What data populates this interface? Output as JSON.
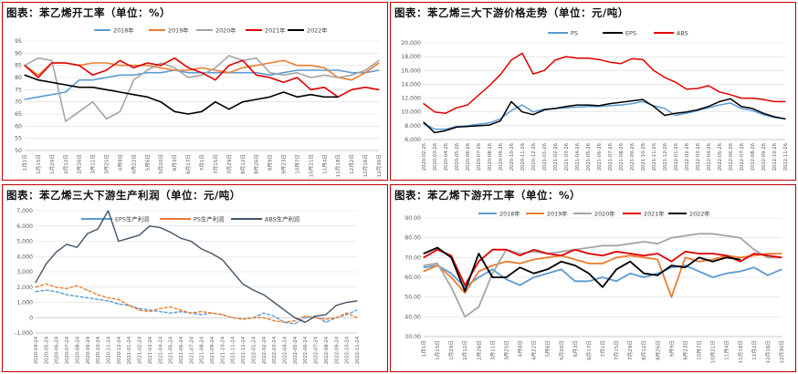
{
  "panels": [
    {
      "title": "图表：苯乙烯开工率（单位：%）"
    },
    {
      "title": "图表：苯乙烯三大下游价格走势（单位：元/吨）"
    },
    {
      "title": "图表：苯乙烯三大下游生产利润（单位：元/吨）"
    },
    {
      "title": "图表：苯乙烯下游开工率（单位：%）"
    }
  ],
  "chart_data": [
    {
      "type": "line",
      "title": "图表：苯乙烯开工率（单位：%）",
      "xlabel": "",
      "ylabel": "",
      "ylim": [
        50,
        95
      ],
      "yticks": [
        50,
        55,
        60,
        65,
        70,
        75,
        80,
        85,
        90,
        95
      ],
      "x": [
        "1月1日",
        "1月15日",
        "1月29日",
        "2月12日",
        "2月26日",
        "3月11日",
        "3月25日",
        "4月8日",
        "4月22日",
        "5月6日",
        "5月20日",
        "6月3日",
        "6月17日",
        "7月1日",
        "7月15日",
        "7月29日",
        "8月12日",
        "8月26日",
        "9月9日",
        "9月23日",
        "10月7日",
        "10月21日",
        "11月4日",
        "11月18日",
        "12月2日",
        "12月16日",
        "12月30日"
      ],
      "legend": "top",
      "grid": true,
      "series": [
        {
          "name": "2018年",
          "color": "#5b9bd5",
          "values": [
            71,
            72,
            73,
            74,
            79,
            79,
            80,
            81,
            81,
            82,
            82,
            83,
            82,
            82,
            82,
            82,
            82,
            82,
            81,
            82,
            83,
            83,
            83,
            83,
            82,
            82,
            83
          ]
        },
        {
          "name": "2019年",
          "color": "#ed7d31",
          "values": [
            85,
            81,
            86,
            86,
            85,
            86,
            86,
            85,
            85,
            85,
            84,
            83,
            83,
            84,
            83,
            82,
            84,
            85,
            86,
            87,
            85,
            85,
            84,
            80,
            79,
            82,
            86
          ]
        },
        {
          "name": "2020年",
          "color": "#a5a5a5",
          "values": [
            85,
            88,
            87,
            62,
            66,
            70,
            63,
            66,
            79,
            83,
            86,
            84,
            80,
            81,
            84,
            89,
            87,
            88,
            82,
            81,
            82,
            80,
            81,
            80,
            81,
            83,
            87
          ]
        },
        {
          "name": "2021年",
          "color": "#e00000",
          "values": [
            85,
            80,
            86,
            86,
            85,
            81,
            83,
            87,
            84,
            86,
            85,
            88,
            84,
            82,
            79,
            85,
            87,
            81,
            80,
            78,
            80,
            75,
            76,
            72,
            75,
            76,
            75
          ]
        },
        {
          "name": "2022年",
          "color": "#000000",
          "values": [
            81,
            79,
            78,
            77,
            76,
            76,
            75,
            74,
            73,
            72,
            70,
            66,
            65,
            66,
            70,
            67,
            70,
            71,
            72,
            74,
            72,
            73,
            72,
            72,
            null,
            null,
            null
          ]
        }
      ]
    },
    {
      "type": "line",
      "title": "图表：苯乙烯三大下游价格走势（单位：元/吨）",
      "xlabel": "",
      "ylabel": "",
      "ylim": [
        6000,
        20000
      ],
      "yticks": [
        6000,
        8000,
        10000,
        12000,
        14000,
        16000,
        18000,
        20000
      ],
      "x": [
        "2020-02-26",
        "2020-03-26",
        "2020-04-26",
        "2020-05-26",
        "2020-06-26",
        "2020-07-26",
        "2020-08-26",
        "2020-09-26",
        "2020-10-26",
        "2020-11-26",
        "2020-12-26",
        "2021-01-26",
        "2021-02-26",
        "2021-03-26",
        "2021-04-26",
        "2021-05-26",
        "2021-06-26",
        "2021-07-26",
        "2021-08-26",
        "2021-09-26",
        "2021-10-26",
        "2021-11-26",
        "2021-12-26",
        "2022-01-26",
        "2022-02-26",
        "2022-03-26",
        "2022-04-26",
        "2022-05-26",
        "2022-06-26",
        "2022-07-26",
        "2022-08-26",
        "2022-09-26",
        "2022-10-26",
        "2022-11-26"
      ],
      "legend": "top",
      "grid": true,
      "series": [
        {
          "name": "PS",
          "color": "#5b9bd5",
          "values": [
            8300,
            7500,
            7500,
            7900,
            8000,
            8200,
            8400,
            9000,
            10200,
            11000,
            10000,
            10400,
            10500,
            10600,
            10700,
            10800,
            10800,
            10900,
            11000,
            11200,
            11500,
            10900,
            10500,
            9500,
            9800,
            10200,
            10600,
            11000,
            11300,
            10500,
            10200,
            9600,
            9200,
            9000
          ]
        },
        {
          "name": "EPS",
          "color": "#000000",
          "values": [
            8500,
            7000,
            7300,
            7800,
            7900,
            8000,
            8100,
            8700,
            11500,
            10000,
            9600,
            10300,
            10500,
            10800,
            11000,
            11000,
            10900,
            11200,
            11400,
            11600,
            11800,
            10800,
            9500,
            9800,
            10000,
            10300,
            10800,
            11500,
            11900,
            10800,
            10500,
            9800,
            9300,
            9000
          ]
        },
        {
          "name": "ABS",
          "color": "#e00000",
          "values": [
            11200,
            10000,
            9800,
            10600,
            11000,
            12400,
            13800,
            15400,
            17500,
            18500,
            15500,
            16000,
            17500,
            18000,
            17800,
            17800,
            17600,
            17200,
            17000,
            17700,
            17600,
            16000,
            15000,
            14300,
            13300,
            13400,
            13800,
            12900,
            12500,
            12000,
            12000,
            11800,
            11500,
            11500
          ]
        }
      ]
    },
    {
      "type": "line",
      "title": "图表：苯乙烯三大下游生产利润（单位：元/吨）",
      "xlabel": "",
      "ylabel": "",
      "ylim": [
        -1000,
        7000
      ],
      "yticks": [
        -1000,
        0,
        1000,
        2000,
        3000,
        4000,
        5000,
        6000,
        7000
      ],
      "x": [
        "2020-04-24",
        "2020-05-24",
        "2020-06-24",
        "2020-07-24",
        "2020-08-24",
        "2020-09-24",
        "2020-10-24",
        "2020-11-24",
        "2020-12-24",
        "2021-01-24",
        "2021-02-24",
        "2021-03-24",
        "2021-04-24",
        "2021-05-24",
        "2021-06-24",
        "2021-07-24",
        "2021-08-24",
        "2021-09-24",
        "2021-10-24",
        "2021-11-24",
        "2021-12-24",
        "2022-01-24",
        "2022-02-24",
        "2022-03-24",
        "2022-04-24",
        "2022-05-24",
        "2022-06-24",
        "2022-07-24",
        "2022-08-24",
        "2022-09-24",
        "2022-10-24",
        "2022-11-24"
      ],
      "legend": "top",
      "grid": true,
      "series": [
        {
          "name": "EPS生产利润",
          "color": "#5b9bd5",
          "values": [
            1700,
            1800,
            1700,
            1500,
            1400,
            1300,
            1200,
            1100,
            900,
            800,
            600,
            500,
            400,
            300,
            400,
            300,
            200,
            300,
            200,
            0,
            -100,
            0,
            300,
            100,
            -300,
            -400,
            0,
            100,
            -300,
            0,
            200,
            500
          ]
        },
        {
          "name": "PS生产利润",
          "color": "#ed7d31",
          "values": [
            2000,
            2200,
            2000,
            1900,
            2100,
            1800,
            1500,
            1300,
            1200,
            800,
            500,
            400,
            600,
            700,
            500,
            300,
            400,
            300,
            200,
            0,
            -100,
            0,
            0,
            -200,
            -300,
            -200,
            100,
            0,
            -100,
            0,
            300,
            0
          ]
        },
        {
          "name": "ABS生产利润",
          "color": "#44546a",
          "values": [
            2300,
            3500,
            4300,
            4800,
            4600,
            5500,
            5800,
            7000,
            5000,
            5200,
            5400,
            6000,
            5900,
            5600,
            5200,
            5000,
            4500,
            4200,
            3800,
            3000,
            2200,
            1800,
            1500,
            1000,
            500,
            0,
            -300,
            100,
            200,
            800,
            1000,
            1100
          ]
        }
      ]
    },
    {
      "type": "line",
      "title": "图表：苯乙烯下游开工率（单位：%）",
      "xlabel": "",
      "ylabel": "",
      "ylim": [
        30,
        90
      ],
      "yticks": [
        30,
        40,
        50,
        60,
        70,
        80,
        90
      ],
      "ytick_labels": [
        "30.00",
        "40.00",
        "50.00",
        "60.00",
        "70.00",
        "80.00",
        "90.00"
      ],
      "x": [
        "1月1日",
        "1月15日",
        "1月29日",
        "2月12日",
        "2月26日",
        "3月11日",
        "3月25日",
        "4月8日",
        "4月22日",
        "5月6日",
        "5月20日",
        "6月3日",
        "6月17日",
        "7月1日",
        "7月15日",
        "7月29日",
        "8月12日",
        "8月26日",
        "9月9日",
        "9月23日",
        "10月7日",
        "10月21日",
        "11月4日",
        "11月18日",
        "12月2日",
        "12月16日",
        "12月30日"
      ],
      "legend": "top",
      "grid": true,
      "series": [
        {
          "name": "2018年",
          "color": "#5b9bd5",
          "values": [
            65,
            66,
            62,
            55,
            60,
            64,
            59,
            56,
            60,
            62,
            64,
            58,
            58,
            60,
            58,
            62,
            60,
            62,
            65,
            66,
            63,
            60,
            62,
            63,
            65,
            61,
            64
          ]
        },
        {
          "name": "2019年",
          "color": "#ed7d31",
          "values": [
            63,
            66,
            60,
            52,
            63,
            66,
            68,
            67,
            69,
            70,
            71,
            69,
            67,
            67,
            70,
            71,
            70,
            69,
            50,
            70,
            68,
            69,
            71,
            70,
            71,
            72,
            72
          ]
        },
        {
          "name": "2020年",
          "color": "#a5a5a5",
          "values": [
            66,
            67,
            55,
            40,
            45,
            62,
            74,
            72,
            73,
            72,
            73,
            74,
            75,
            76,
            76,
            77,
            78,
            77,
            80,
            81,
            82,
            82,
            81,
            80,
            74,
            70,
            70
          ]
        },
        {
          "name": "2021年",
          "color": "#e00000",
          "values": [
            70,
            74,
            71,
            56,
            68,
            74,
            74,
            71,
            74,
            72,
            71,
            74,
            72,
            71,
            73,
            72,
            71,
            72,
            68,
            73,
            72,
            72,
            71,
            68,
            72,
            71,
            70
          ]
        },
        {
          "name": "2022年",
          "color": "#000000",
          "values": [
            72,
            75,
            70,
            53,
            72,
            60,
            60,
            65,
            62,
            64,
            68,
            66,
            62,
            55,
            64,
            68,
            62,
            61,
            66,
            65,
            70,
            68,
            70,
            69,
            null,
            null,
            null
          ]
        }
      ]
    }
  ]
}
